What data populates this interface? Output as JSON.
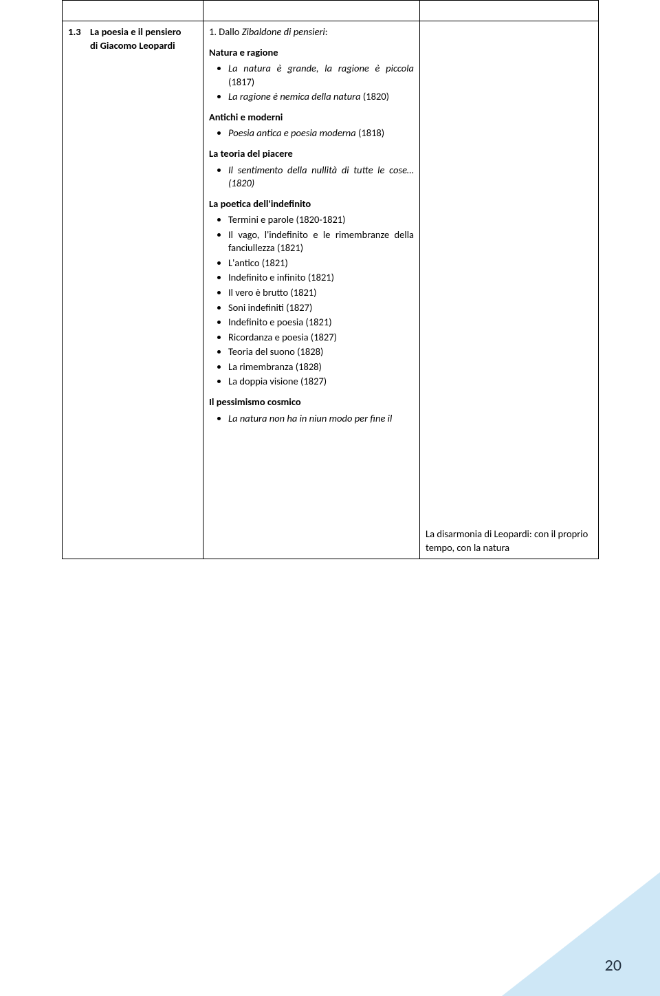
{
  "row1": {
    "num": "1.3",
    "title_l1": "La poesia e il pensiero",
    "title_l2": "di Giacomo Leopardi",
    "col2_intro_pre": "1. Dallo ",
    "col2_intro_ital": "Zibaldone di pensieri",
    "col2_intro_post": ":",
    "s1": {
      "head": "Natura e ragione",
      "i1_ital": "La natura è grande, la ragione è piccola",
      "i1_post": " (1817)",
      "i2_ital": "La ragione è nemica della natura",
      "i2_post": " (1820)"
    },
    "s2": {
      "head": "Antichi e moderni",
      "i1_ital": "Poesia antica e poesia moderna",
      "i1_post": " (1818)"
    },
    "s3": {
      "head": "La teoria del piacere",
      "i1_ital": "Il sentimento della nullità di tutte le cose…",
      "i1_post": " (1820)"
    },
    "s4": {
      "head": "La poetica dell'indefinito",
      "i1": "Termini e parole (1820-1821)",
      "i2": "Il vago, l'indefinito e le rimembranze della fanciullezza (1821)",
      "i3": "L'antico (1821)",
      "i4": "Indefinito e infinito (1821)",
      "i5": "Il vero è brutto (1821)",
      "i6": "Soni indefiniti (1827)",
      "i7": "Indefinito e poesia (1821)",
      "i8": "Ricordanza e poesia (1827)",
      "i9": "Teoria del suono (1828)",
      "i10": "La rimembranza (1828)",
      "i11": "La doppia visione (1827)"
    },
    "s5": {
      "head": "Il pessimismo cosmico",
      "i1_ital": "La natura non ha in niun modo per fine il"
    },
    "col3_text": "La disarmonia di Leopardi: con il proprio tempo, con la natura"
  },
  "pagenum": "20"
}
